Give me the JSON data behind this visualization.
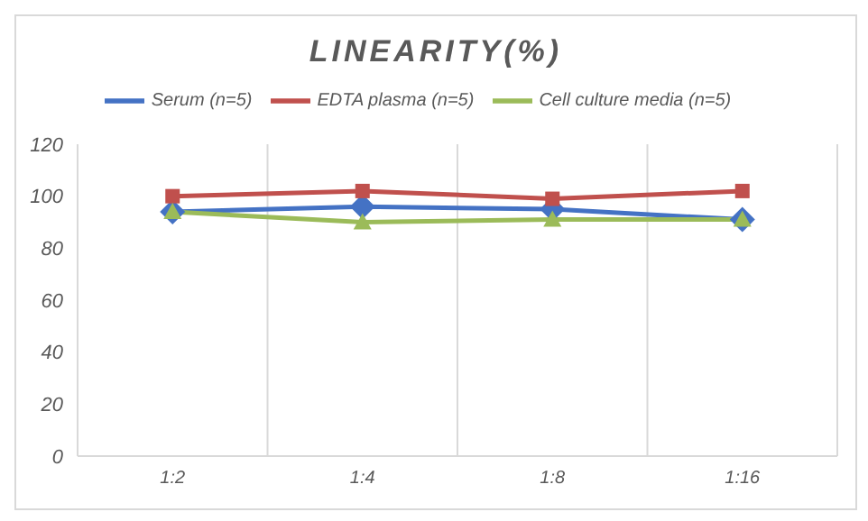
{
  "chart_data": {
    "type": "line",
    "title": "LINEARITY(%)",
    "categories": [
      "1:2",
      "1:4",
      "1:8",
      "1:16"
    ],
    "series": [
      {
        "name": "Serum (n=5)",
        "color": "#4472c4",
        "values": [
          94,
          96,
          95,
          91
        ],
        "marker": "diamond"
      },
      {
        "name": "EDTA plasma (n=5)",
        "color": "#c0504d",
        "values": [
          100,
          102,
          99,
          102
        ],
        "marker": "square"
      },
      {
        "name": "Cell culture media (n=5)",
        "color": "#9bbb59",
        "values": [
          94,
          90,
          91,
          91
        ],
        "marker": "triangle"
      }
    ],
    "ylim": [
      0,
      120
    ],
    "yticks": [
      0,
      20,
      40,
      60,
      80,
      100,
      120
    ],
    "grid": "x",
    "legend": "top"
  }
}
